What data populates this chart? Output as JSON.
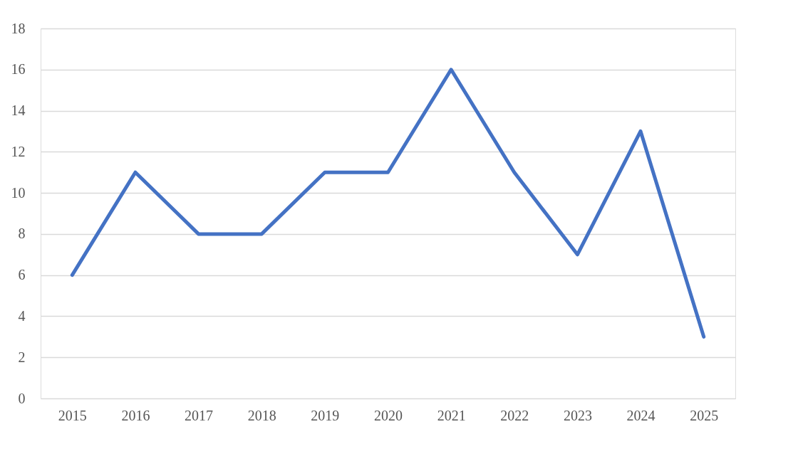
{
  "chart_data": {
    "type": "line",
    "categories": [
      "2015",
      "2016",
      "2017",
      "2018",
      "2019",
      "2020",
      "2021",
      "2022",
      "2023",
      "2024",
      "2025"
    ],
    "series": [
      {
        "color": "#4472c4",
        "values": [
          6,
          11,
          8,
          8,
          11,
          11,
          16,
          11,
          7,
          13,
          3
        ]
      }
    ],
    "ylim": [
      0,
      18
    ],
    "yticks": [
      0,
      2,
      4,
      6,
      8,
      10,
      12,
      14,
      16,
      18
    ],
    "grid": "y"
  }
}
